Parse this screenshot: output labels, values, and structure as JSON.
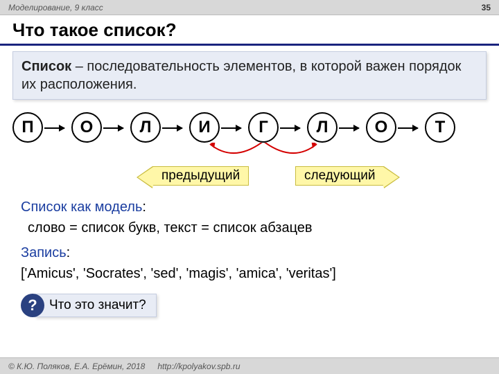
{
  "topbar": {
    "subject": "Моделирование, 9 класс",
    "page": "35"
  },
  "title": "Что такое список?",
  "definition": {
    "term": "Список",
    "rest": " – последовательность элементов, в которой важен порядок их расположения."
  },
  "nodes": [
    "П",
    "О",
    "Л",
    "И",
    "Г",
    "Л",
    "О",
    "Т"
  ],
  "layout": {
    "node_diameter": 44,
    "node_spacing": 85,
    "arrow_len": 28,
    "curve_color": "#d40000",
    "g_index": 4
  },
  "tags": {
    "prev": "предыдущий",
    "next": "следующий"
  },
  "sections": {
    "model_heading": "Список как модель",
    "model_text": "слово = список букв, текст = список абзацев",
    "record_heading": "Запись",
    "record_text": "['Amicus', 'Socrates', 'sed', 'magis', 'amica', 'veritas']"
  },
  "question": {
    "icon": "?",
    "text": "Что это значит?"
  },
  "footer": {
    "copyright": "© К.Ю. Поляков, Е.А. Ерёмин, 2018",
    "url": "http://kpolyakov.spb.ru"
  }
}
